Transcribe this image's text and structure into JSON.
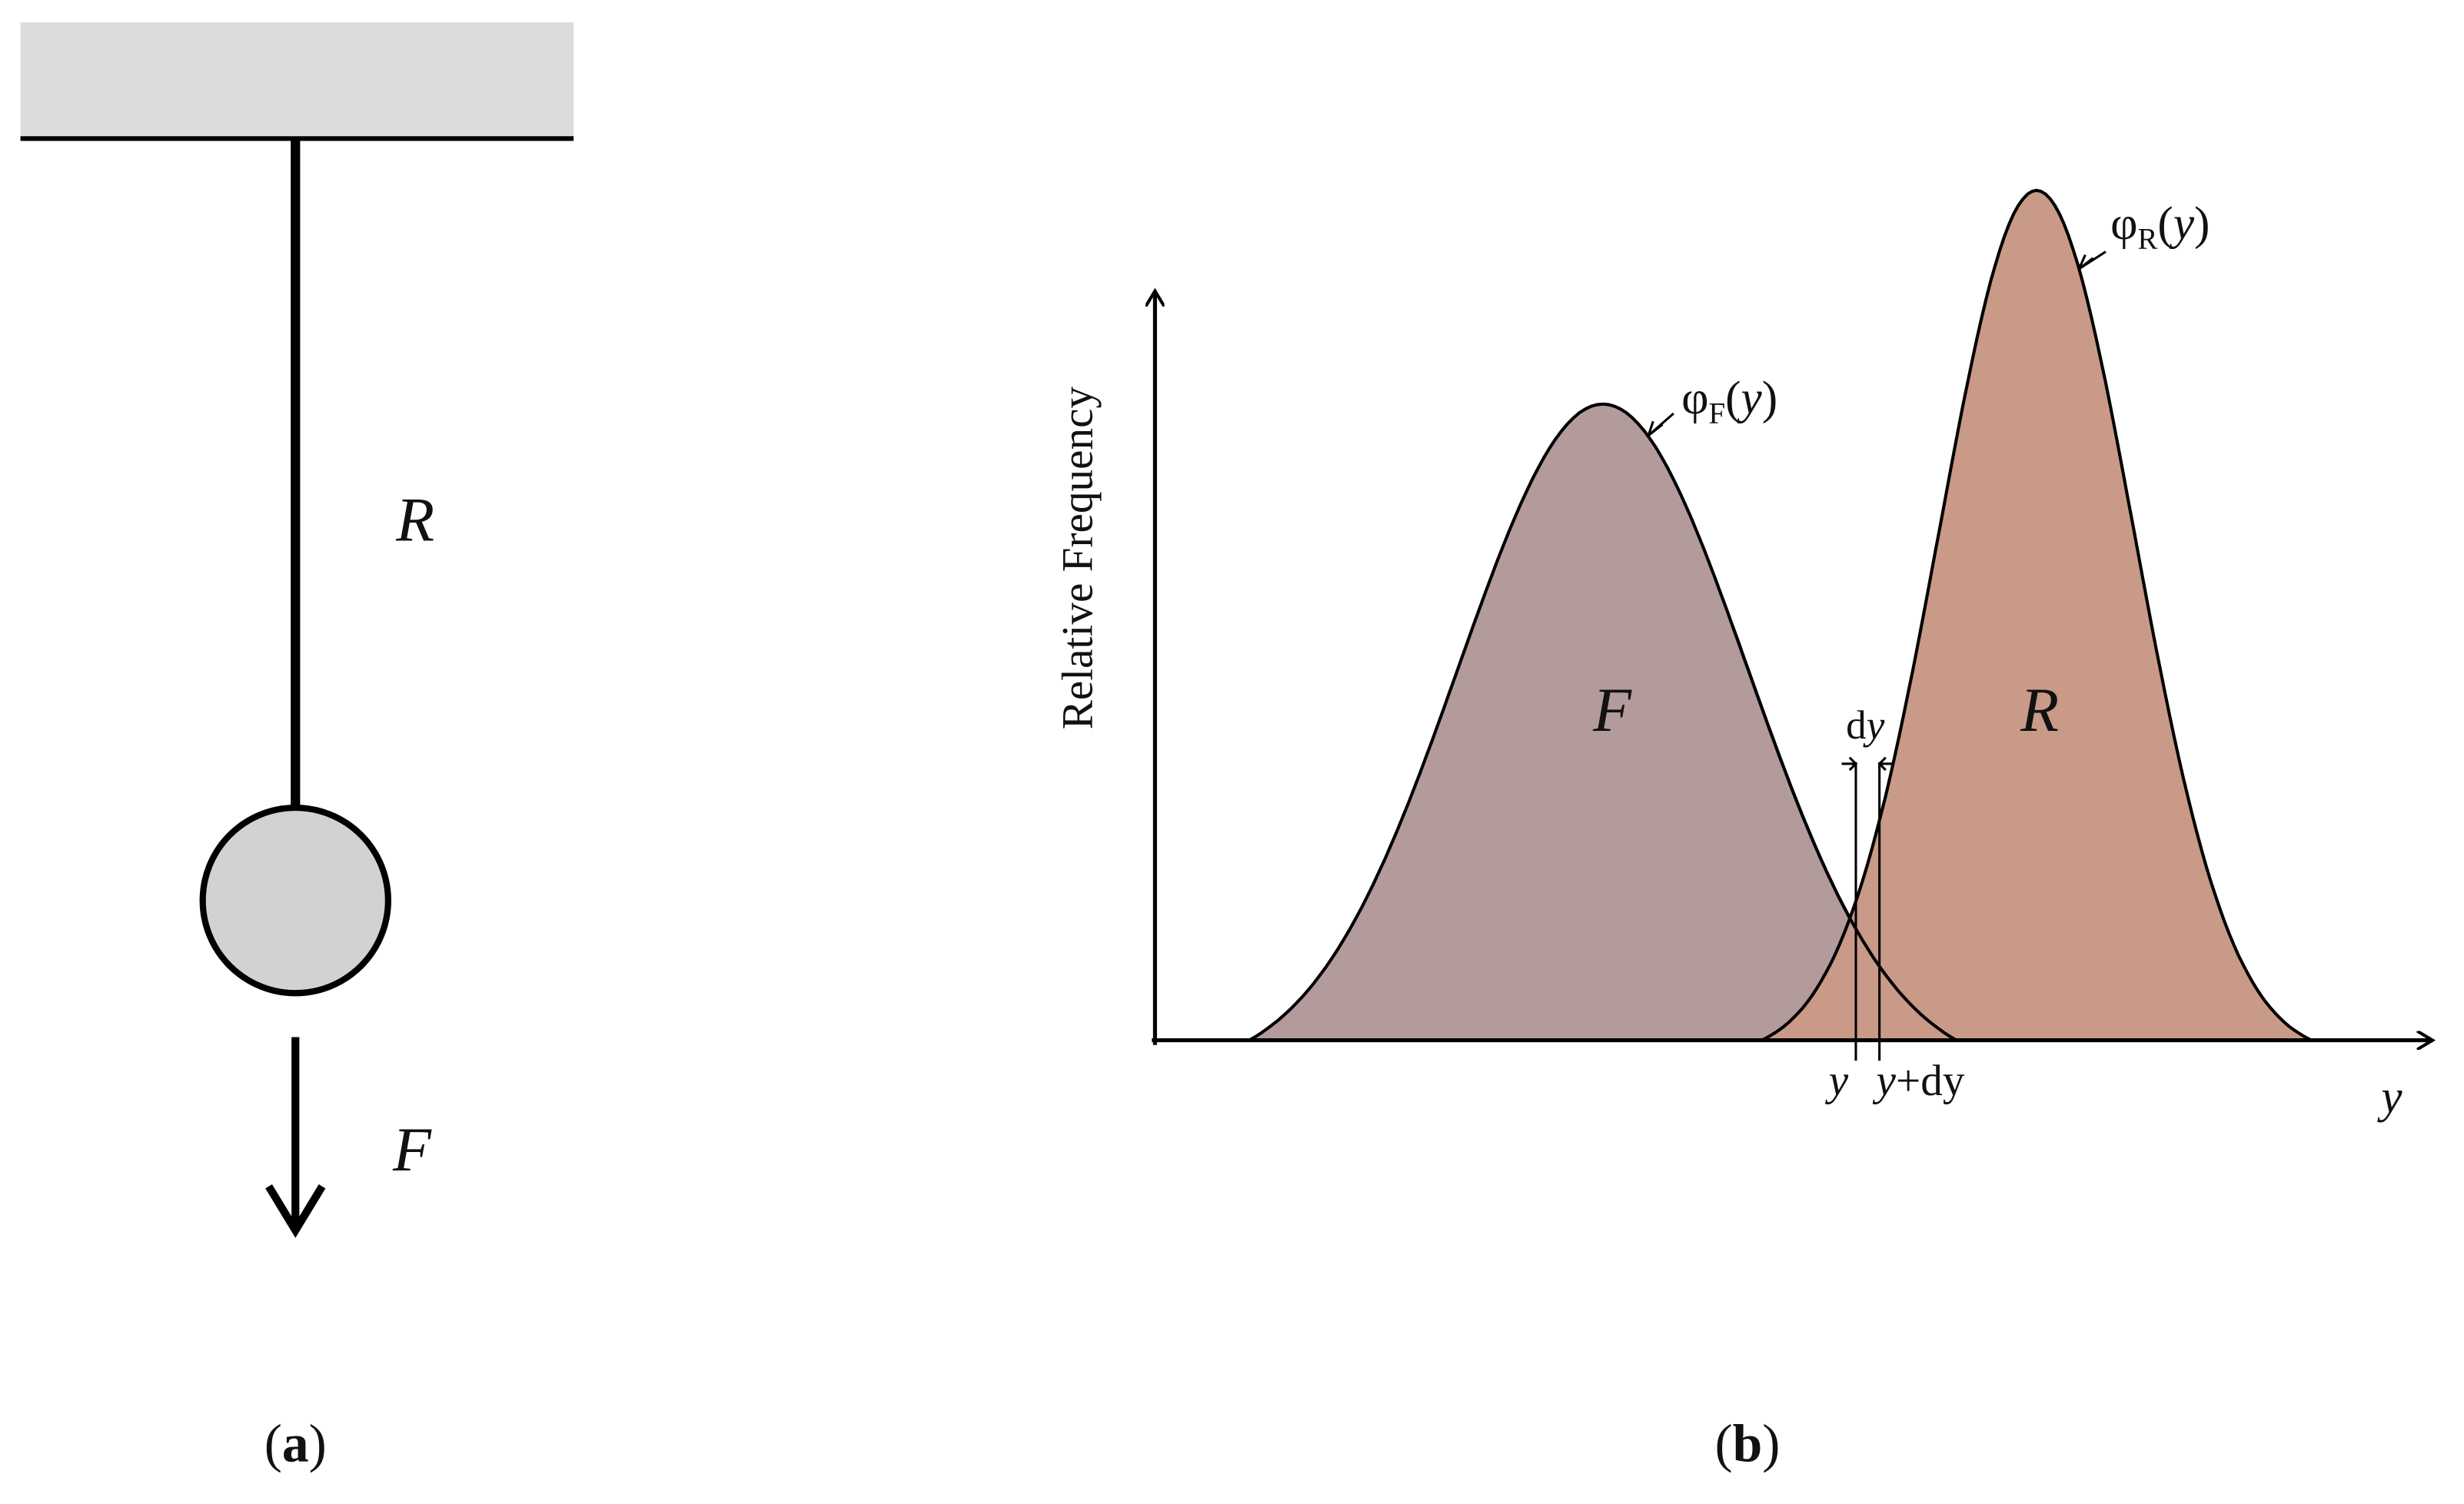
{
  "panel_a": {
    "label_open": "(",
    "label_letter": "a",
    "label_close": ")",
    "rod_label": "R",
    "force_label": "F",
    "ceiling_color": "#dcdcdc",
    "mass_color": "#d2d2d2"
  },
  "panel_b": {
    "label_open": "(",
    "label_letter": "b",
    "label_close": ")",
    "y_axis_label": "Relative Frequency",
    "x_axis_label": "y",
    "curve_f": {
      "name": "F",
      "symbol": "φ",
      "subscript": "F",
      "arg_open": "(",
      "arg": "y",
      "arg_close": ")",
      "fill_color": "#b39b9b"
    },
    "curve_r": {
      "name": "R",
      "symbol": "φ",
      "subscript": "R",
      "arg_open": "(",
      "arg": "y",
      "arg_close": ")",
      "fill_color": "#c99a87"
    },
    "dy_label": {
      "d": "d",
      "y": "y"
    },
    "tick_y": "y",
    "tick_y_dy": {
      "y": "y",
      "rest": "+dy"
    }
  }
}
